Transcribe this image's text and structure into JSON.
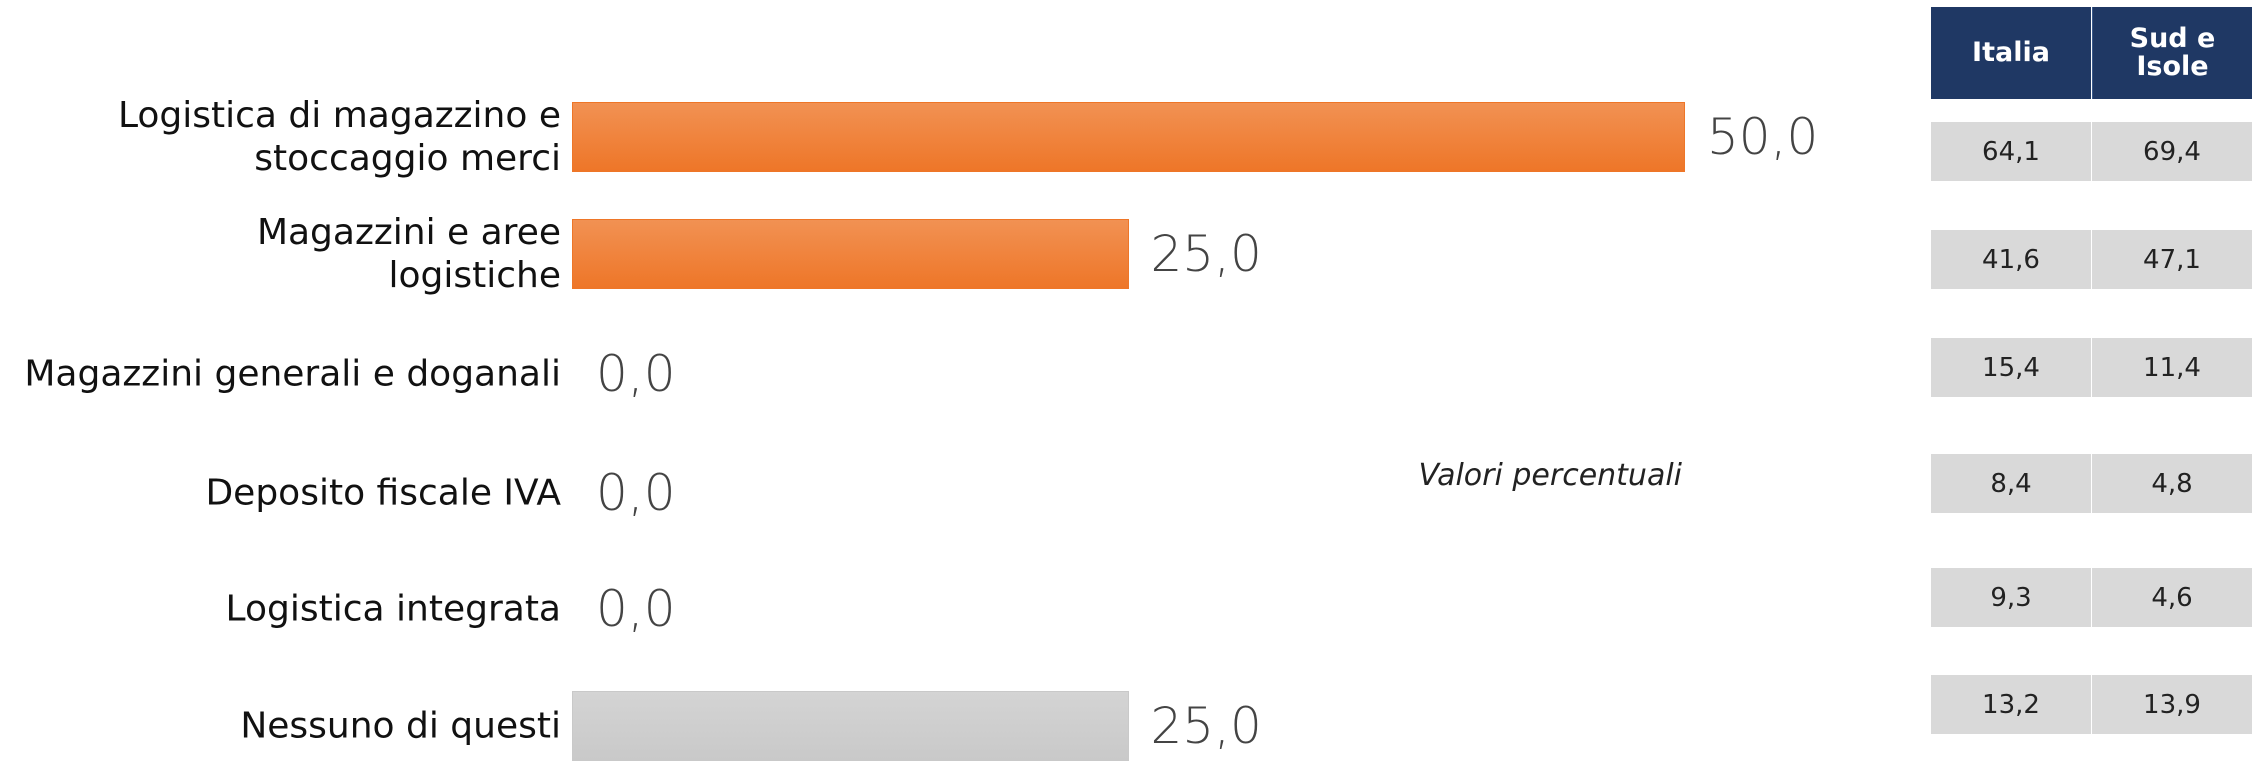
{
  "chart_data": {
    "type": "bar",
    "orientation": "horizontal",
    "categories": [
      "Logistica di magazzino e\nstoccaggio merci",
      "Magazzini e aree\nlogistiche",
      "Magazzini generali e doganali",
      "Deposito fiscale IVA",
      "Logistica integrata",
      "Nessuno di questi"
    ],
    "values": [
      50,
      25,
      0,
      0,
      0,
      25
    ],
    "value_labels": [
      "50,0",
      "25,0",
      "0,0",
      "0,0",
      "0,0",
      "25,0"
    ],
    "colors": [
      "#ee7628",
      "#ee7628",
      "#ee7628",
      "#ee7628",
      "#ee7628",
      "#c9c9c9"
    ],
    "annotation": "Valori percentuali"
  },
  "table": {
    "header": [
      "Italia",
      "Sud e\nIsole"
    ],
    "rows": [
      [
        "64,1",
        "69,4"
      ],
      [
        "41,6",
        "47,1"
      ],
      [
        "15,4",
        "11,4"
      ],
      [
        "8,4",
        "4,8"
      ],
      [
        "9,3",
        "4,6"
      ],
      [
        "13,2",
        "13,9"
      ]
    ]
  }
}
